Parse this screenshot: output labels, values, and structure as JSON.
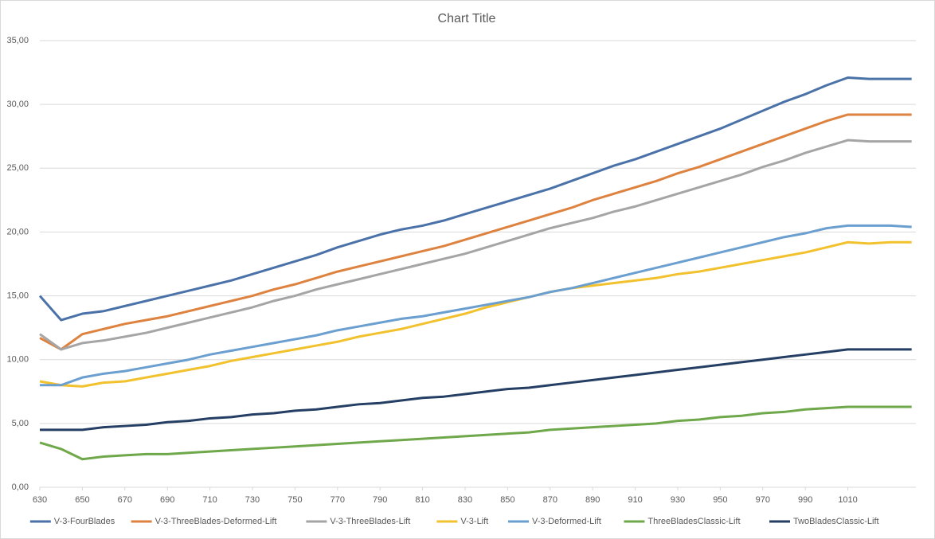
{
  "chart_data": {
    "type": "line",
    "title": "Chart Title",
    "x": [
      630,
      640,
      650,
      660,
      670,
      680,
      690,
      700,
      710,
      720,
      730,
      740,
      750,
      760,
      770,
      780,
      790,
      800,
      810,
      820,
      830,
      840,
      850,
      860,
      870,
      880,
      890,
      900,
      910,
      920,
      930,
      940,
      950,
      960,
      970,
      980,
      990,
      1000,
      1010,
      1020,
      1030,
      1040
    ],
    "xlim": [
      630,
      1042
    ],
    "xticks": [
      630,
      650,
      670,
      690,
      710,
      730,
      750,
      770,
      790,
      810,
      830,
      850,
      870,
      890,
      910,
      930,
      950,
      970,
      990,
      1010
    ],
    "ylim": [
      0,
      35
    ],
    "yticks": [
      {
        "value": 0,
        "label": "0,00"
      },
      {
        "value": 5,
        "label": "5,00"
      },
      {
        "value": 10,
        "label": "10,00"
      },
      {
        "value": 15,
        "label": "15,00"
      },
      {
        "value": 20,
        "label": "20,00"
      },
      {
        "value": 25,
        "label": "25,00"
      },
      {
        "value": 30,
        "label": "30,00"
      },
      {
        "value": 35,
        "label": "35,00"
      }
    ],
    "grid": true,
    "legend": "bottom",
    "series": [
      {
        "name": "V-3-FourBlades",
        "color": "#4a72a8",
        "values": [
          15.0,
          13.1,
          13.6,
          13.8,
          14.2,
          14.6,
          15.0,
          15.4,
          15.8,
          16.2,
          16.7,
          17.2,
          17.7,
          18.2,
          18.8,
          19.3,
          19.8,
          20.2,
          20.5,
          20.9,
          21.4,
          21.9,
          22.4,
          22.9,
          23.4,
          24.0,
          24.6,
          25.2,
          25.7,
          26.3,
          26.9,
          27.5,
          28.1,
          28.8,
          29.5,
          30.2,
          30.8,
          31.5,
          32.1,
          32.0,
          32.0,
          32.0
        ]
      },
      {
        "name": "V-3-ThreeBlades-Deformed-Lift",
        "color": "#de8240",
        "values": [
          11.7,
          10.8,
          12.0,
          12.4,
          12.8,
          13.1,
          13.4,
          13.8,
          14.2,
          14.6,
          15.0,
          15.5,
          15.9,
          16.4,
          16.9,
          17.3,
          17.7,
          18.1,
          18.5,
          18.9,
          19.4,
          19.9,
          20.4,
          20.9,
          21.4,
          21.9,
          22.5,
          23.0,
          23.5,
          24.0,
          24.6,
          25.1,
          25.7,
          26.3,
          26.9,
          27.5,
          28.1,
          28.7,
          29.2,
          29.2,
          29.2,
          29.2
        ]
      },
      {
        "name": "V-3-ThreeBlades-Lift",
        "color": "#a5a5a5",
        "values": [
          12.0,
          10.8,
          11.3,
          11.5,
          11.8,
          12.1,
          12.5,
          12.9,
          13.3,
          13.7,
          14.1,
          14.6,
          15.0,
          15.5,
          15.9,
          16.3,
          16.7,
          17.1,
          17.5,
          17.9,
          18.3,
          18.8,
          19.3,
          19.8,
          20.3,
          20.7,
          21.1,
          21.6,
          22.0,
          22.5,
          23.0,
          23.5,
          24.0,
          24.5,
          25.1,
          25.6,
          26.2,
          26.7,
          27.2,
          27.1,
          27.1,
          27.1
        ]
      },
      {
        "name": "V-3-Lift",
        "color": "#f2c12e",
        "values": [
          8.3,
          8.0,
          7.9,
          8.2,
          8.3,
          8.6,
          8.9,
          9.2,
          9.5,
          9.9,
          10.2,
          10.5,
          10.8,
          11.1,
          11.4,
          11.8,
          12.1,
          12.4,
          12.8,
          13.2,
          13.6,
          14.1,
          14.5,
          14.9,
          15.3,
          15.6,
          15.8,
          16.0,
          16.2,
          16.4,
          16.7,
          16.9,
          17.2,
          17.5,
          17.8,
          18.1,
          18.4,
          18.8,
          19.2,
          19.1,
          19.2,
          19.2
        ]
      },
      {
        "name": "V-3-Deformed-Lift",
        "color": "#6a9fcf",
        "values": [
          8.0,
          8.0,
          8.6,
          8.9,
          9.1,
          9.4,
          9.7,
          10.0,
          10.4,
          10.7,
          11.0,
          11.3,
          11.6,
          11.9,
          12.3,
          12.6,
          12.9,
          13.2,
          13.4,
          13.7,
          14.0,
          14.3,
          14.6,
          14.9,
          15.3,
          15.6,
          16.0,
          16.4,
          16.8,
          17.2,
          17.6,
          18.0,
          18.4,
          18.8,
          19.2,
          19.6,
          19.9,
          20.3,
          20.5,
          20.5,
          20.5,
          20.4
        ]
      },
      {
        "name": "ThreeBladesClassic-Lift",
        "color": "#6fa84a",
        "values": [
          3.5,
          3.0,
          2.2,
          2.4,
          2.5,
          2.6,
          2.6,
          2.7,
          2.8,
          2.9,
          3.0,
          3.1,
          3.2,
          3.3,
          3.4,
          3.5,
          3.6,
          3.7,
          3.8,
          3.9,
          4.0,
          4.1,
          4.2,
          4.3,
          4.5,
          4.6,
          4.7,
          4.8,
          4.9,
          5.0,
          5.2,
          5.3,
          5.5,
          5.6,
          5.8,
          5.9,
          6.1,
          6.2,
          6.3,
          6.3,
          6.3,
          6.3
        ]
      },
      {
        "name": "TwoBladesClassic-Lift",
        "color": "#253f64",
        "values": [
          4.5,
          4.5,
          4.5,
          4.7,
          4.8,
          4.9,
          5.1,
          5.2,
          5.4,
          5.5,
          5.7,
          5.8,
          6.0,
          6.1,
          6.3,
          6.5,
          6.6,
          6.8,
          7.0,
          7.1,
          7.3,
          7.5,
          7.7,
          7.8,
          8.0,
          8.2,
          8.4,
          8.6,
          8.8,
          9.0,
          9.2,
          9.4,
          9.6,
          9.8,
          10.0,
          10.2,
          10.4,
          10.6,
          10.8,
          10.8,
          10.8,
          10.8
        ]
      }
    ]
  }
}
